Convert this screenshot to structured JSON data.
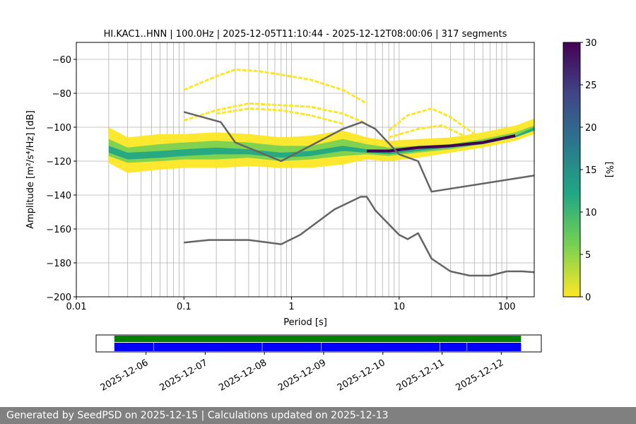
{
  "chart_data": [
    {
      "type": "heatmap",
      "title": "HI.KAC1..HNN | 100.0Hz | 2025-12-05T11:10:44 - 2025-12-12T08:00:06 | 317 segments",
      "xlabel": "Period [s]",
      "ylabel": "Amplitude [m²/s⁴/Hz] [dB]",
      "x_scale": "log",
      "xlim": [
        0.01,
        180
      ],
      "ylim": [
        -200,
        -50
      ],
      "x_ticks": [
        0.01,
        0.1,
        1,
        10,
        100
      ],
      "x_tick_labels": [
        "0.01",
        "0.1",
        "1",
        "10",
        "100"
      ],
      "y_ticks": [
        -60,
        -80,
        -100,
        -120,
        -140,
        -160,
        -180,
        -200
      ],
      "y_tick_labels": [
        "−60",
        "−80",
        "−100",
        "−120",
        "−140",
        "−160",
        "−180",
        "−200"
      ],
      "grid": "x",
      "colorbar": {
        "label": "[%]",
        "range": [
          0,
          30
        ],
        "ticks": [
          0,
          5,
          10,
          15,
          20,
          25,
          30
        ],
        "tick_labels": [
          "0",
          "5",
          "10",
          "15",
          "20",
          "25",
          "30"
        ],
        "colormap": [
          "#fde725",
          "#7ad151",
          "#22a884",
          "#2a788e",
          "#414487",
          "#440154"
        ]
      },
      "density_bands": [
        {
          "level": "low",
          "color": "#fde725",
          "points": [
            [
              0.02,
              -100
            ],
            [
              0.03,
              -106
            ],
            [
              0.06,
              -104
            ],
            [
              0.1,
              -104
            ],
            [
              0.2,
              -103
            ],
            [
              0.4,
              -104
            ],
            [
              0.8,
              -106
            ],
            [
              1.5,
              -105
            ],
            [
              3,
              -102
            ],
            [
              5,
              -106
            ],
            [
              8,
              -108
            ],
            [
              15,
              -107
            ],
            [
              30,
              -106
            ],
            [
              60,
              -103
            ],
            [
              120,
              -99
            ],
            [
              180,
              -95
            ]
          ],
          "lower": [
            [
              0.02,
              -121
            ],
            [
              0.03,
              -127
            ],
            [
              0.06,
              -125
            ],
            [
              0.1,
              -124
            ],
            [
              0.2,
              -124
            ],
            [
              0.4,
              -123
            ],
            [
              0.8,
              -124
            ],
            [
              1.5,
              -124
            ],
            [
              3,
              -122
            ],
            [
              5,
              -119
            ],
            [
              8,
              -120
            ],
            [
              15,
              -118
            ],
            [
              30,
              -115
            ],
            [
              60,
              -112
            ],
            [
              120,
              -108
            ],
            [
              180,
              -104
            ]
          ]
        },
        {
          "level": "mid",
          "color": "#7ad151",
          "points": [
            [
              0.02,
              -107
            ],
            [
              0.03,
              -112
            ],
            [
              0.06,
              -110
            ],
            [
              0.1,
              -109
            ],
            [
              0.2,
              -108
            ],
            [
              0.4,
              -109
            ],
            [
              0.8,
              -111
            ],
            [
              1.5,
              -111
            ],
            [
              3,
              -107
            ],
            [
              5,
              -110
            ],
            [
              8,
              -112
            ],
            [
              15,
              -111
            ],
            [
              30,
              -110
            ],
            [
              60,
              -107
            ],
            [
              120,
              -103
            ],
            [
              180,
              -99
            ]
          ],
          "lower": [
            [
              0.02,
              -117
            ],
            [
              0.03,
              -121
            ],
            [
              0.06,
              -120
            ],
            [
              0.1,
              -119
            ],
            [
              0.2,
              -119
            ],
            [
              0.4,
              -118
            ],
            [
              0.8,
              -120
            ],
            [
              1.5,
              -119
            ],
            [
              3,
              -117
            ],
            [
              5,
              -116
            ],
            [
              8,
              -117
            ],
            [
              15,
              -115
            ],
            [
              30,
              -113
            ],
            [
              60,
              -110
            ],
            [
              120,
              -106
            ],
            [
              180,
              -102
            ]
          ]
        },
        {
          "level": "high",
          "color": "#22a884",
          "points": [
            [
              0.02,
              -111
            ],
            [
              0.03,
              -115
            ],
            [
              0.06,
              -114
            ],
            [
              0.1,
              -113
            ],
            [
              0.2,
              -112
            ],
            [
              0.4,
              -113
            ],
            [
              0.8,
              -115
            ],
            [
              1.5,
              -114
            ],
            [
              3,
              -111
            ],
            [
              5,
              -113
            ],
            [
              8,
              -114
            ],
            [
              15,
              -113
            ],
            [
              30,
              -111
            ],
            [
              60,
              -109
            ],
            [
              120,
              -105
            ],
            [
              180,
              -100
            ]
          ],
          "lower": [
            [
              0.02,
              -115
            ],
            [
              0.03,
              -119
            ],
            [
              0.06,
              -118
            ],
            [
              0.1,
              -117
            ],
            [
              0.2,
              -116
            ],
            [
              0.4,
              -116
            ],
            [
              0.8,
              -118
            ],
            [
              1.5,
              -117
            ],
            [
              3,
              -114
            ],
            [
              5,
              -115
            ],
            [
              8,
              -116
            ],
            [
              15,
              -114
            ],
            [
              30,
              -112
            ],
            [
              60,
              -110
            ],
            [
              120,
              -106
            ],
            [
              180,
              -102
            ]
          ]
        }
      ],
      "mode_line": {
        "color": "#440154",
        "x": [
          5,
          8,
          15,
          30,
          60,
          120
        ],
        "y": [
          -114,
          -114,
          -112,
          -111,
          -109,
          -105
        ]
      },
      "scattered_traces": [
        {
          "x": [
            0.1,
            0.2,
            0.3,
            0.5,
            0.8,
            1.5,
            3,
            5
          ],
          "y": [
            -78,
            -70,
            -66,
            -67,
            -69,
            -72,
            -78,
            -86
          ]
        },
        {
          "x": [
            0.1,
            0.2,
            0.4,
            0.8,
            1.5,
            3,
            5
          ],
          "y": [
            -96,
            -90,
            -86,
            -87,
            -88,
            -92,
            -98
          ]
        },
        {
          "x": [
            0.2,
            0.4,
            0.8,
            1.5,
            3
          ],
          "y": [
            -92,
            -89,
            -90,
            -93,
            -98
          ]
        },
        {
          "x": [
            8,
            12,
            20,
            30,
            50
          ],
          "y": [
            -102,
            -93,
            -89,
            -94,
            -104
          ]
        },
        {
          "x": [
            8,
            15,
            25,
            40
          ],
          "y": [
            -106,
            -101,
            -99,
            -105
          ]
        }
      ],
      "series": [
        {
          "color": "#646464",
          "x": [
            0.1,
            0.22,
            0.3,
            0.8,
            3,
            4.5,
            6,
            10,
            15,
            20,
            180
          ],
          "y": [
            -91,
            -97,
            -109,
            -120,
            -101,
            -97,
            -101,
            -116,
            -120,
            -138,
            -128.5
          ]
        },
        {
          "color": "#646464",
          "x": [
            0.1,
            0.17,
            0.4,
            0.8,
            1.2,
            2.5,
            4.4,
            5,
            6,
            10,
            12,
            15,
            20,
            30,
            45,
            70,
            100,
            140,
            180
          ],
          "y": [
            -168,
            -166.5,
            -166.5,
            -169,
            -163.5,
            -148.5,
            -141,
            -141,
            -149,
            -163.5,
            -166,
            -162.5,
            -177.5,
            -185,
            -187.5,
            -187.5,
            -185,
            -185,
            -185.5
          ]
        }
      ]
    },
    {
      "type": "timeline",
      "x_range": [
        "2025-12-05T11:10:44",
        "2025-12-12T08:00:06"
      ],
      "x_tick_labels": [
        "2025-12-06",
        "2025-12-07",
        "2025-12-08",
        "2025-12-09",
        "2025-12-10",
        "2025-12-11",
        "2025-12-12"
      ],
      "tracks": [
        {
          "color": "#008000",
          "segments": [
            [
              "2025-12-05T11:10:44",
              "2025-12-12T08:00:06"
            ]
          ]
        },
        {
          "color": "#0000ff",
          "segments": [
            [
              "2025-12-05T11:10:44",
              "2025-12-06T03:00:00"
            ],
            [
              "2025-12-06T03:10:00",
              "2025-12-07T23:00:00"
            ],
            [
              "2025-12-07T23:10:00",
              "2025-12-08T23:00:00"
            ],
            [
              "2025-12-08T23:10:00",
              "2025-12-10T23:00:00"
            ],
            [
              "2025-12-10T23:10:00",
              "2025-12-11T10:00:00"
            ],
            [
              "2025-12-11T10:10:00",
              "2025-12-12T08:00:06"
            ]
          ]
        }
      ]
    }
  ],
  "footer": {
    "text": "Generated by SeedPSD on 2025-12-15 | Calculations updated on 2025-12-13"
  }
}
